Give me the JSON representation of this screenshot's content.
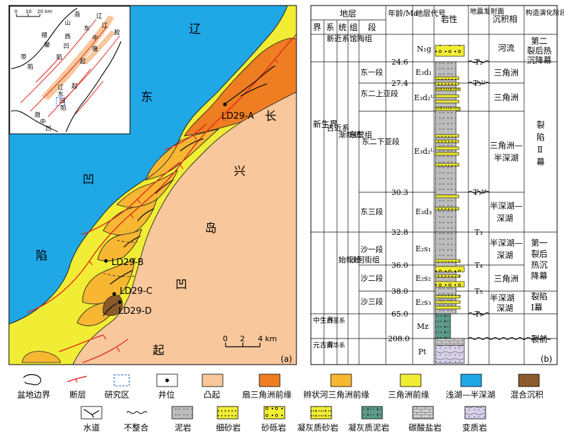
{
  "colors": {
    "sea": "#1fa7e6",
    "uplift": "#f8c79b",
    "fan_delta": "#ef7e22",
    "braided_delta": "#f7b733",
    "delta_front": "#f1ed35",
    "mixed": "#8b5a2b",
    "mud": "#bdbdbd",
    "fault": "#e3261f"
  },
  "map": {
    "labels": {
      "liao": "辽",
      "dong": "东",
      "chang": "长",
      "xing": "兴",
      "dao": "岛",
      "ao": "凹",
      "qi": "起",
      "xian": "陷",
      "ao2": "凹"
    },
    "wells": [
      "LD29-A",
      "LD29-B",
      "LD29-C",
      "LD29-D"
    ],
    "scale": {
      "t0": "0",
      "t2": "2",
      "t4": "4 km"
    },
    "panel_label": "(a)",
    "inset": {
      "scale": {
        "t0": "0",
        "t10": "10",
        "t20": "20 km"
      },
      "labels": [
        "燕",
        "辽",
        "辽",
        "山",
        "东",
        "胶",
        "褶",
        "西",
        "中",
        "皱",
        "凹",
        "隆",
        "带",
        "陷",
        "起",
        "陷",
        "辽",
        "东",
        "凹",
        "起",
        "陷",
        "渤",
        "中",
        "凹"
      ]
    }
  },
  "column": {
    "panel_label": "(b)",
    "headers": {
      "strata": "地层",
      "jie": "界",
      "xi": "系",
      "tong": "统",
      "zu": "组",
      "duan": "段",
      "age": "年龄/Ma",
      "code": "地层代号",
      "lith": "岩性",
      "seismic": "地震发射面",
      "facies": "沉积相",
      "stage": "构造演化阶段"
    },
    "era": {
      "xinsheng": "新生界",
      "zhongsheng": "中生界",
      "yuangu": "元古界"
    },
    "system": {
      "neogene": "新近系",
      "paleogene": "古近系",
      "baie": "白垩系",
      "nanhua": "南华系"
    },
    "series": {
      "jianxin": "渐新统",
      "shixin": "始新统"
    },
    "formation": {
      "guantao": "馆陶组",
      "dongying": "东营组",
      "shahejie": "沙河街组"
    },
    "members": {
      "d1": "东一段",
      "d2u": "东二上亚段",
      "d2l": "东二下亚段",
      "d3": "东三段",
      "s1": "沙一段",
      "s2": "沙二段",
      "s3": "沙三段"
    },
    "ages": [
      "24.6",
      "27.4",
      "30.3",
      "32.8",
      "36.0",
      "38.0",
      "65.0",
      "208.0"
    ],
    "codes": {
      "n1g": "N₁g",
      "e3d1": "E₃d₁",
      "e3d2u": "E₃d₂ᵁ",
      "e3d2l": "E₃d₂ᴸ",
      "e3d3": "E₃d₃",
      "e2s1": "E₂s₁",
      "e2s2": "E₂s₂",
      "e2s3": "E₂s₃",
      "mz": "Mz",
      "pt": "Pt"
    },
    "seismic": {
      "t2": "T₂",
      "t3u": "T₃ᵁ",
      "t3m": "T₃ᴹ",
      "t3": "T₃",
      "t4": "T₄",
      "t5": "T₅",
      "t8": "T₈"
    },
    "facies": {
      "river": "河流",
      "delta1": "三角洲",
      "delta2": "三角洲",
      "delta_semi_a": "三角洲—",
      "delta_semi_b": "半深湖",
      "semi_a": "半深湖—",
      "semi_b": "深湖",
      "semi2_a": "半深湖—",
      "semi2_b": "深湖",
      "delta3": "三角洲",
      "semi3_a": "半深湖",
      "semi3_b": "深湖"
    },
    "stages": {
      "s_post2": [
        "第二",
        "裂后热",
        "沉降幕"
      ],
      "s_rift2": [
        "裂",
        "陷",
        "Ⅱ",
        "幕"
      ],
      "s_post1": [
        "第一",
        "裂后",
        "热沉",
        "降幕"
      ],
      "s_rift1": [
        "裂陷",
        "Ⅰ幕"
      ],
      "s_pre": [
        "裂前"
      ]
    }
  },
  "legend": {
    "basin": "盆地边界",
    "fault": "断层",
    "study": "研究区",
    "well": "井位",
    "uplift": "凸起",
    "fan": "扇三角洲前缘",
    "braided": "辫状河三角洲前缘",
    "delta": "三角洲前缘",
    "lake": "浅湖—半深湖",
    "mixed": "混合沉积",
    "channel": "水道",
    "unconf": "不整合",
    "mud": "泥岩",
    "fine": "细砂岩",
    "gravel": "砂砾岩",
    "tuffsand": "凝灰质砂岩",
    "tuffmud": "凝灰质泥岩",
    "carb": "碳酸盐岩",
    "meta": "变质岩"
  }
}
